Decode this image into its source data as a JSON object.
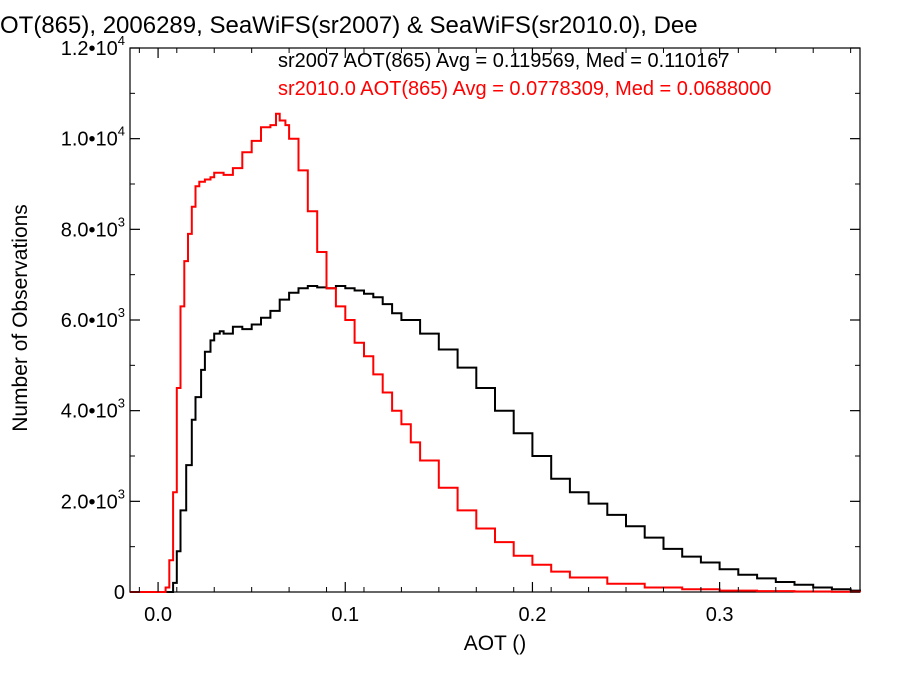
{
  "chart_data": {
    "type": "line",
    "title": "OT(865), 2006289, SeaWiFS(sr2007) & SeaWiFS(sr2010.0), Dee",
    "xlabel": "AOT ()",
    "ylabel": "Number of Observations",
    "xlim": [
      -0.015,
      0.375
    ],
    "ylim": [
      0,
      12000
    ],
    "x_ticks": [
      0.0,
      0.1,
      0.2,
      0.3
    ],
    "x_tick_labels": [
      "0.0",
      "0.1",
      "0.2",
      "0.3"
    ],
    "y_ticks": [
      0,
      2000,
      4000,
      6000,
      8000,
      10000,
      12000
    ],
    "y_tick_labels": [
      {
        "mant": "0",
        "exp": ""
      },
      {
        "mant": "2.0•10",
        "exp": "3"
      },
      {
        "mant": "4.0•10",
        "exp": "3"
      },
      {
        "mant": "6.0•10",
        "exp": "3"
      },
      {
        "mant": "8.0•10",
        "exp": "3"
      },
      {
        "mant": "1.0•10",
        "exp": "4"
      },
      {
        "mant": "1.2•10",
        "exp": "4"
      }
    ],
    "grid": false,
    "annotations": [
      {
        "text": "sr2007 AOT(865) Avg = 0.119569, Med = 0.110167",
        "color": "#000000"
      },
      {
        "text": "sr2010.0 AOT(865) Avg = 0.0778309, Med = 0.0688000",
        "color": "#ff0000"
      }
    ],
    "series": [
      {
        "color": "#000000",
        "x": [
          -0.015,
          0.005,
          0.008,
          0.01,
          0.012,
          0.015,
          0.018,
          0.02,
          0.023,
          0.025,
          0.028,
          0.03,
          0.033,
          0.035,
          0.04,
          0.045,
          0.05,
          0.055,
          0.06,
          0.065,
          0.07,
          0.075,
          0.08,
          0.085,
          0.09,
          0.095,
          0.1,
          0.105,
          0.11,
          0.115,
          0.12,
          0.125,
          0.13,
          0.14,
          0.15,
          0.16,
          0.17,
          0.18,
          0.19,
          0.2,
          0.21,
          0.22,
          0.23,
          0.24,
          0.25,
          0.26,
          0.27,
          0.28,
          0.29,
          0.3,
          0.31,
          0.32,
          0.33,
          0.34,
          0.35,
          0.36,
          0.37,
          0.375
        ],
        "y": [
          0,
          0,
          200,
          900,
          1800,
          2800,
          3800,
          4300,
          4900,
          5300,
          5550,
          5700,
          5750,
          5700,
          5850,
          5800,
          5900,
          6050,
          6200,
          6450,
          6600,
          6700,
          6750,
          6720,
          6700,
          6750,
          6700,
          6650,
          6580,
          6500,
          6350,
          6150,
          6000,
          5700,
          5350,
          4950,
          4500,
          4000,
          3500,
          3000,
          2500,
          2200,
          1950,
          1700,
          1450,
          1200,
          950,
          780,
          650,
          500,
          380,
          300,
          220,
          160,
          100,
          60,
          30,
          20
        ]
      },
      {
        "color": "#ff0000",
        "x": [
          -0.015,
          0.002,
          0.004,
          0.006,
          0.008,
          0.01,
          0.012,
          0.014,
          0.016,
          0.018,
          0.02,
          0.022,
          0.025,
          0.028,
          0.03,
          0.035,
          0.04,
          0.045,
          0.05,
          0.055,
          0.06,
          0.063,
          0.065,
          0.068,
          0.07,
          0.075,
          0.08,
          0.085,
          0.09,
          0.095,
          0.1,
          0.105,
          0.11,
          0.115,
          0.12,
          0.125,
          0.13,
          0.135,
          0.14,
          0.15,
          0.16,
          0.17,
          0.18,
          0.19,
          0.2,
          0.21,
          0.22,
          0.24,
          0.26,
          0.28,
          0.3,
          0.32,
          0.34,
          0.36,
          0.375
        ],
        "y": [
          0,
          0,
          100,
          700,
          2200,
          4500,
          6300,
          7300,
          7900,
          8500,
          8950,
          9050,
          9100,
          9150,
          9250,
          9200,
          9350,
          9700,
          9950,
          10250,
          10300,
          10550,
          10400,
          10300,
          10000,
          9300,
          8400,
          7500,
          6700,
          6300,
          6000,
          5500,
          5200,
          4800,
          4400,
          4000,
          3700,
          3300,
          2900,
          2300,
          1800,
          1400,
          1100,
          800,
          600,
          450,
          320,
          180,
          100,
          60,
          30,
          20,
          10,
          5,
          0
        ]
      }
    ]
  }
}
